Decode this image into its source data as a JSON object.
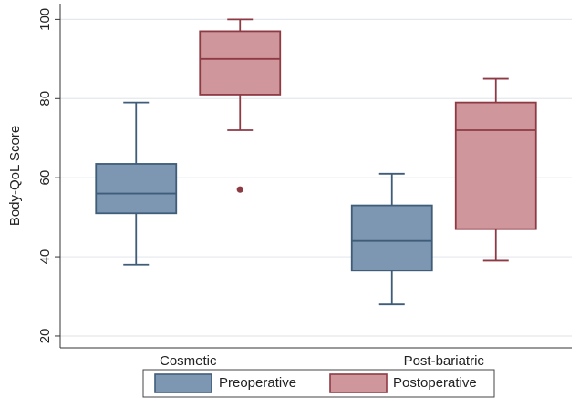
{
  "chart_data": {
    "type": "box",
    "title": "",
    "xlabel": "",
    "ylabel": "Body-QoL Score",
    "ylim": [
      17,
      104
    ],
    "yticks": [
      20,
      40,
      60,
      80,
      100
    ],
    "grid": true,
    "legend_position": "bottom",
    "categories": [
      "Cosmetic",
      "Post-bariatric"
    ],
    "series": [
      {
        "name": "Preoperative",
        "color": "#7d97b3",
        "stroke": "#3f5c78",
        "boxes": [
          {
            "category": "Cosmetic",
            "whisker_low": 38,
            "q1": 51,
            "median": 56,
            "q3": 63.5,
            "whisker_high": 79,
            "outliers": []
          },
          {
            "category": "Post-bariatric",
            "whisker_low": 28,
            "q1": 36.5,
            "median": 44,
            "q3": 53,
            "whisker_high": 61,
            "outliers": []
          }
        ]
      },
      {
        "name": "Postoperative",
        "color": "#cf979c",
        "stroke": "#8e3a44",
        "boxes": [
          {
            "category": "Cosmetic",
            "whisker_low": 72,
            "q1": 81,
            "median": 90,
            "q3": 97,
            "whisker_high": 100,
            "outliers": [
              57
            ]
          },
          {
            "category": "Post-bariatric",
            "whisker_low": 39,
            "q1": 47,
            "median": 72,
            "q3": 79,
            "whisker_high": 85,
            "outliers": []
          }
        ]
      }
    ]
  }
}
